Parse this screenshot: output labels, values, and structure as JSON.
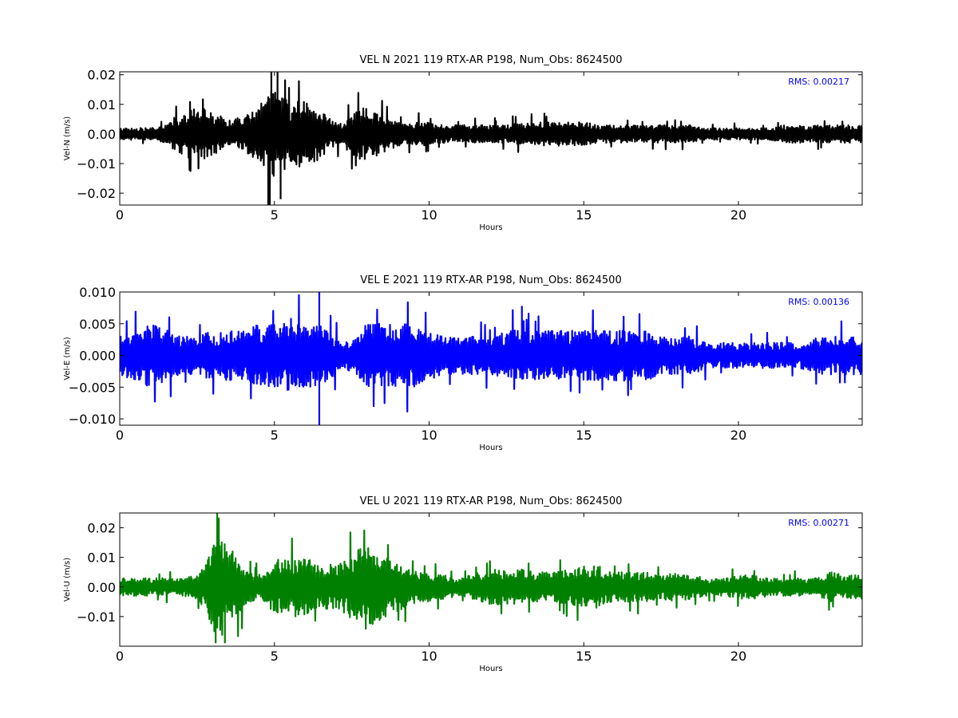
{
  "chart_data": [
    {
      "type": "line",
      "title": "VEL N 2021 119 RTX-AR  P198, Num_Obs: 8624500",
      "xlabel": "Hours",
      "ylabel": "Vel-N (m/s)",
      "xlim": [
        0,
        24
      ],
      "ylim": [
        -0.024,
        0.021
      ],
      "xticks": [
        0,
        5,
        10,
        15,
        20
      ],
      "xtick_labels": [
        "0",
        "5",
        "10",
        "15",
        "20"
      ],
      "yticks": [
        -0.02,
        -0.01,
        0.0,
        0.01,
        0.02
      ],
      "ytick_labels": [
        "−0.02",
        "−0.01",
        "0.00",
        "0.01",
        "0.02"
      ],
      "annotation": "RMS:  0.00217",
      "line_color": "#000000",
      "annotation_color": "#0000ff",
      "series": [
        {
          "x": [
            0,
            0.5,
            1,
            1.5,
            1.8,
            2.2,
            2.7,
            3,
            3.5,
            4,
            4.5,
            4.8,
            5,
            5.3,
            5.6,
            6,
            6.4,
            6.8,
            7.2,
            7.6,
            8,
            8.4,
            8.8,
            9.2,
            9.6,
            10,
            10.5,
            11,
            11.5,
            12,
            12.5,
            13,
            13.5,
            14,
            14.5,
            15,
            15.5,
            16,
            16.5,
            17,
            17.5,
            18,
            18.5,
            19,
            19.5,
            20,
            20.5,
            21,
            21.5,
            22,
            22.5,
            23,
            23.5,
            24
          ],
          "amplitude": [
            0.002,
            0.002,
            0.002,
            0.003,
            0.006,
            0.008,
            0.009,
            0.007,
            0.005,
            0.006,
            0.009,
            0.016,
            0.015,
            0.012,
            0.011,
            0.011,
            0.009,
            0.005,
            0.004,
            0.008,
            0.009,
            0.007,
            0.005,
            0.004,
            0.004,
            0.004,
            0.003,
            0.003,
            0.003,
            0.003,
            0.003,
            0.004,
            0.004,
            0.004,
            0.004,
            0.004,
            0.003,
            0.003,
            0.003,
            0.003,
            0.003,
            0.003,
            0.003,
            0.002,
            0.002,
            0.002,
            0.002,
            0.002,
            0.003,
            0.003,
            0.003,
            0.003,
            0.003,
            0.003
          ],
          "peaks": [
            [
              4.8,
              -0.024
            ],
            [
              4.9,
              0.021
            ],
            [
              5.1,
              0.021
            ],
            [
              5.2,
              -0.022
            ]
          ]
        }
      ]
    },
    {
      "type": "line",
      "title": "VEL E 2021 119 RTX-AR  P198, Num_Obs: 8624500",
      "xlabel": "Hours",
      "ylabel": "Vel-E (m/s)",
      "xlim": [
        0,
        24
      ],
      "ylim": [
        -0.011,
        0.01
      ],
      "xticks": [
        0,
        5,
        10,
        15,
        20
      ],
      "xtick_labels": [
        "0",
        "5",
        "10",
        "15",
        "20"
      ],
      "yticks": [
        -0.01,
        -0.005,
        0.0,
        0.005,
        0.01
      ],
      "ytick_labels": [
        "−0.010",
        "−0.005",
        "0.000",
        "0.005",
        "0.010"
      ],
      "annotation": "RMS:  0.00136",
      "line_color": "#0000ff",
      "annotation_color": "#0000ff",
      "series": [
        {
          "x": [
            0,
            0.5,
            1,
            1.5,
            2,
            2.5,
            3,
            3.5,
            4,
            4.5,
            5,
            5.5,
            6,
            6.4,
            6.8,
            7.2,
            7.6,
            8,
            8.5,
            9,
            9.5,
            10,
            10.5,
            11,
            11.5,
            12,
            12.5,
            13,
            13.5,
            14,
            14.5,
            15,
            15.5,
            16,
            16.5,
            17,
            17.5,
            18,
            18.5,
            19,
            19.5,
            20,
            20.5,
            21,
            21.5,
            22,
            22.5,
            23,
            23.5,
            24
          ],
          "amplitude": [
            0.003,
            0.004,
            0.005,
            0.004,
            0.003,
            0.003,
            0.004,
            0.004,
            0.004,
            0.005,
            0.005,
            0.006,
            0.005,
            0.005,
            0.004,
            0.002,
            0.003,
            0.005,
            0.005,
            0.005,
            0.005,
            0.004,
            0.003,
            0.003,
            0.003,
            0.003,
            0.004,
            0.004,
            0.004,
            0.004,
            0.004,
            0.004,
            0.004,
            0.004,
            0.004,
            0.004,
            0.003,
            0.003,
            0.003,
            0.002,
            0.002,
            0.002,
            0.002,
            0.002,
            0.002,
            0.002,
            0.003,
            0.003,
            0.003,
            0.003
          ],
          "peaks": [
            [
              6.45,
              0.01
            ],
            [
              6.45,
              -0.011
            ],
            [
              13.0,
              0.0078
            ]
          ]
        }
      ]
    },
    {
      "type": "line",
      "title": "VEL U 2021 119 RTX-AR  P198, Num_Obs: 8624500",
      "xlabel": "Hours",
      "ylabel": "Vel-U (m/s)",
      "xlim": [
        0,
        24
      ],
      "ylim": [
        -0.02,
        0.025
      ],
      "xticks": [
        0,
        5,
        10,
        15,
        20
      ],
      "xtick_labels": [
        "0",
        "5",
        "10",
        "15",
        "20"
      ],
      "yticks": [
        -0.01,
        0.0,
        0.01,
        0.02
      ],
      "ytick_labels": [
        "−0.01",
        "0.00",
        "0.01",
        "0.02"
      ],
      "annotation": "RMS:  0.00271",
      "line_color": "#008000",
      "annotation_color": "#0000ff",
      "series": [
        {
          "x": [
            0,
            0.5,
            1,
            1.5,
            2,
            2.5,
            2.8,
            3.1,
            3.4,
            3.8,
            4.2,
            4.6,
            5,
            5.5,
            6,
            6.5,
            7,
            7.5,
            8,
            8.5,
            9,
            9.5,
            10,
            10.5,
            11,
            11.5,
            12,
            12.5,
            13,
            13.5,
            14,
            14.5,
            15,
            15.5,
            16,
            16.5,
            17,
            17.5,
            18,
            18.5,
            19,
            19.5,
            20,
            20.5,
            21,
            21.5,
            22,
            22.5,
            23,
            23.5,
            24
          ],
          "amplitude": [
            0.003,
            0.003,
            0.003,
            0.003,
            0.003,
            0.004,
            0.008,
            0.017,
            0.016,
            0.01,
            0.005,
            0.004,
            0.009,
            0.01,
            0.01,
            0.007,
            0.008,
            0.011,
            0.015,
            0.011,
            0.008,
            0.006,
            0.005,
            0.004,
            0.003,
            0.005,
            0.006,
            0.006,
            0.006,
            0.005,
            0.005,
            0.006,
            0.007,
            0.007,
            0.005,
            0.005,
            0.005,
            0.004,
            0.005,
            0.004,
            0.003,
            0.003,
            0.004,
            0.004,
            0.003,
            0.003,
            0.003,
            0.003,
            0.005,
            0.004,
            0.004
          ],
          "peaks": [
            [
              3.15,
              0.025
            ],
            [
              3.1,
              -0.019
            ],
            [
              3.4,
              -0.019
            ]
          ]
        }
      ]
    }
  ]
}
